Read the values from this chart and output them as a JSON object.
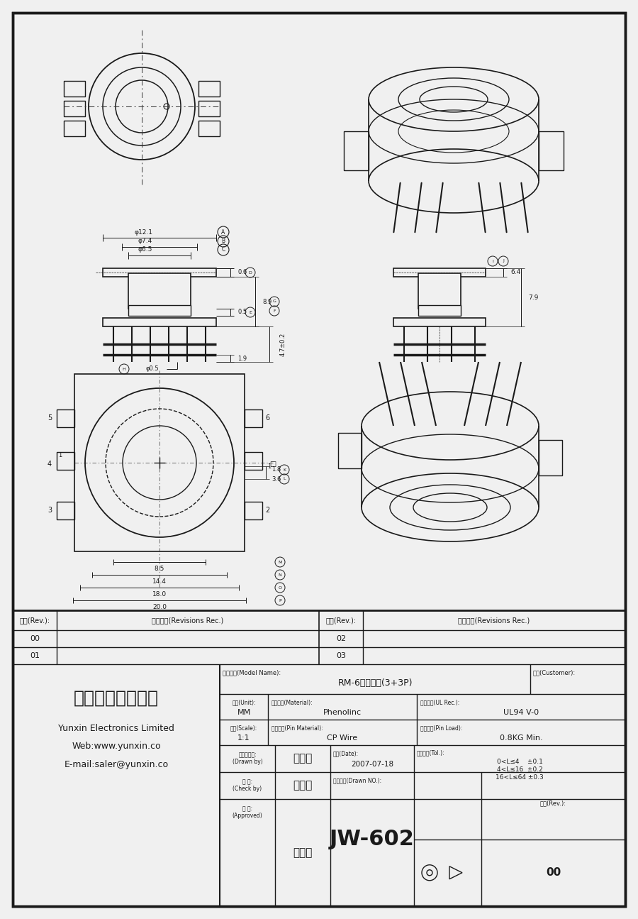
{
  "bg": "#f0f0f0",
  "company_cn": "云芯电子有限公司",
  "company_en": "Yunxin Electronics Limited",
  "web": "Web:www.yunxin.co",
  "email": "E-mail:saler@yunxin.co",
  "model_name_lbl": "规格描述(Model Name):",
  "model_name": "RM-6立式双槽(3+3P)",
  "customer_lbl": "客户(Customer):",
  "unit_lbl": "单位(Unit):",
  "unit": "MM",
  "material_lbl": "本体材质(Material):",
  "material": "Phenolinc",
  "ul_lbl": "防火等级(UL Rec.):",
  "ul": "UL94 V-0",
  "scale_lbl": "比例(Scale):",
  "scale": "1:1",
  "pin_mat_lbl": "针脚材质(Pin Material):",
  "pin_mat": "CP Wire",
  "pin_load_lbl": "针脚拉力(Pin Load):",
  "pin_load": "0.8KG Min.",
  "drawn_lbl": "工程与设计:\n(Drawn by)",
  "drawn": "刘水强",
  "date_lbl": "日期(Date):",
  "date": "2007-07-18",
  "tol_lbl": "一般公差(Tol.):",
  "tol1": "0<L≤4    ±0.1",
  "tol2": "4<L≤16  ±0.2",
  "tol3": "16<L≤64 ±0.3",
  "check_lbl": "校 对:\n(Check by)",
  "check": "韦景川",
  "drawno_lbl": "产品编号(Drawn NO.):",
  "approve_lbl": "核 准:\n(Approved)",
  "approve": "张生坤",
  "part_no": "JW-602",
  "rev_lbl": "版本(Rev.):",
  "rev_no": "00",
  "rev_col": "版本(Rev.):",
  "rec_col": "修改记录(Revisions Rec.)",
  "revs": [
    "00",
    "01",
    "02",
    "03"
  ]
}
